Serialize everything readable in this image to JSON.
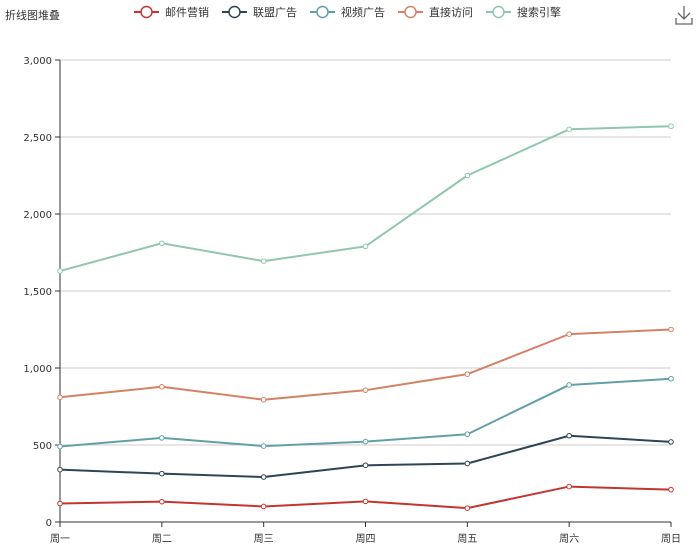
{
  "chart_data": {
    "type": "line",
    "title": "折线图堆叠",
    "categories": [
      "周一",
      "周二",
      "周三",
      "周四",
      "周五",
      "周六",
      "周日"
    ],
    "ylim": [
      0,
      3000
    ],
    "yticks": [
      0,
      500,
      1000,
      1500,
      2000,
      2500,
      3000
    ],
    "ytick_labels": [
      "0",
      "500",
      "1,000",
      "1,500",
      "2,000",
      "2,500",
      "3,000"
    ],
    "grid": true,
    "legend_position": "top",
    "series": [
      {
        "name": "邮件营销",
        "color": "#c23531",
        "values": [
          120,
          132,
          101,
          134,
          90,
          230,
          210
        ]
      },
      {
        "name": "联盟广告",
        "color": "#2f4554",
        "values": [
          340,
          314,
          292,
          368,
          380,
          560,
          520
        ]
      },
      {
        "name": "视频广告",
        "color": "#61a0a8",
        "values": [
          490,
          546,
          493,
          522,
          570,
          890,
          930
        ]
      },
      {
        "name": "直接访问",
        "color": "#d48265",
        "values": [
          810,
          878,
          794,
          856,
          960,
          1220,
          1250
        ]
      },
      {
        "name": "搜索引擎",
        "color": "#91c7ae",
        "values": [
          1630,
          1810,
          1694,
          1790,
          2250,
          2550,
          2570
        ]
      }
    ]
  },
  "toolbox": {
    "download_icon": "download-icon"
  }
}
